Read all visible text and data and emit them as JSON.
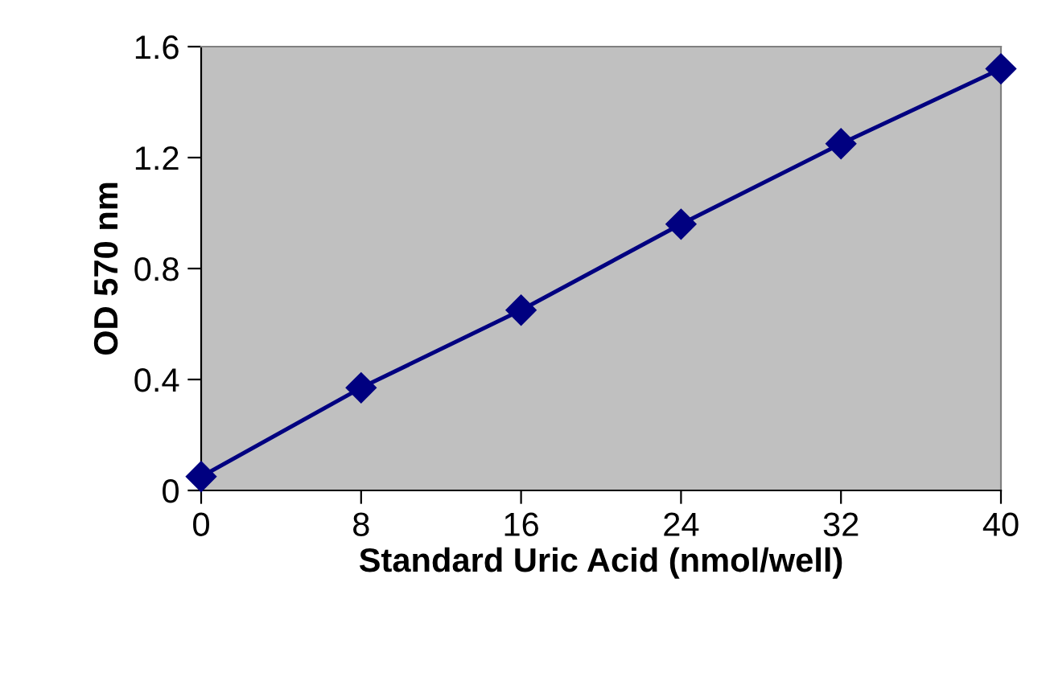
{
  "chart_data": {
    "type": "line",
    "xlabel": "Standard Uric Acid (nmol/well)",
    "ylabel": "OD 570 nm",
    "x": [
      0,
      8,
      16,
      24,
      32,
      40
    ],
    "series": [
      {
        "color": "#000080",
        "values": [
          0.05,
          0.37,
          0.65,
          0.96,
          1.25,
          1.52
        ]
      }
    ],
    "xlim": [
      0,
      40
    ],
    "xticks": [
      0,
      8,
      16,
      24,
      32,
      40
    ],
    "ylim": [
      0,
      1.6
    ],
    "yticks": [
      0,
      0.4,
      0.8,
      1.2,
      1.6
    ],
    "grid": false,
    "marker": "diamond",
    "line_style": "solid"
  }
}
